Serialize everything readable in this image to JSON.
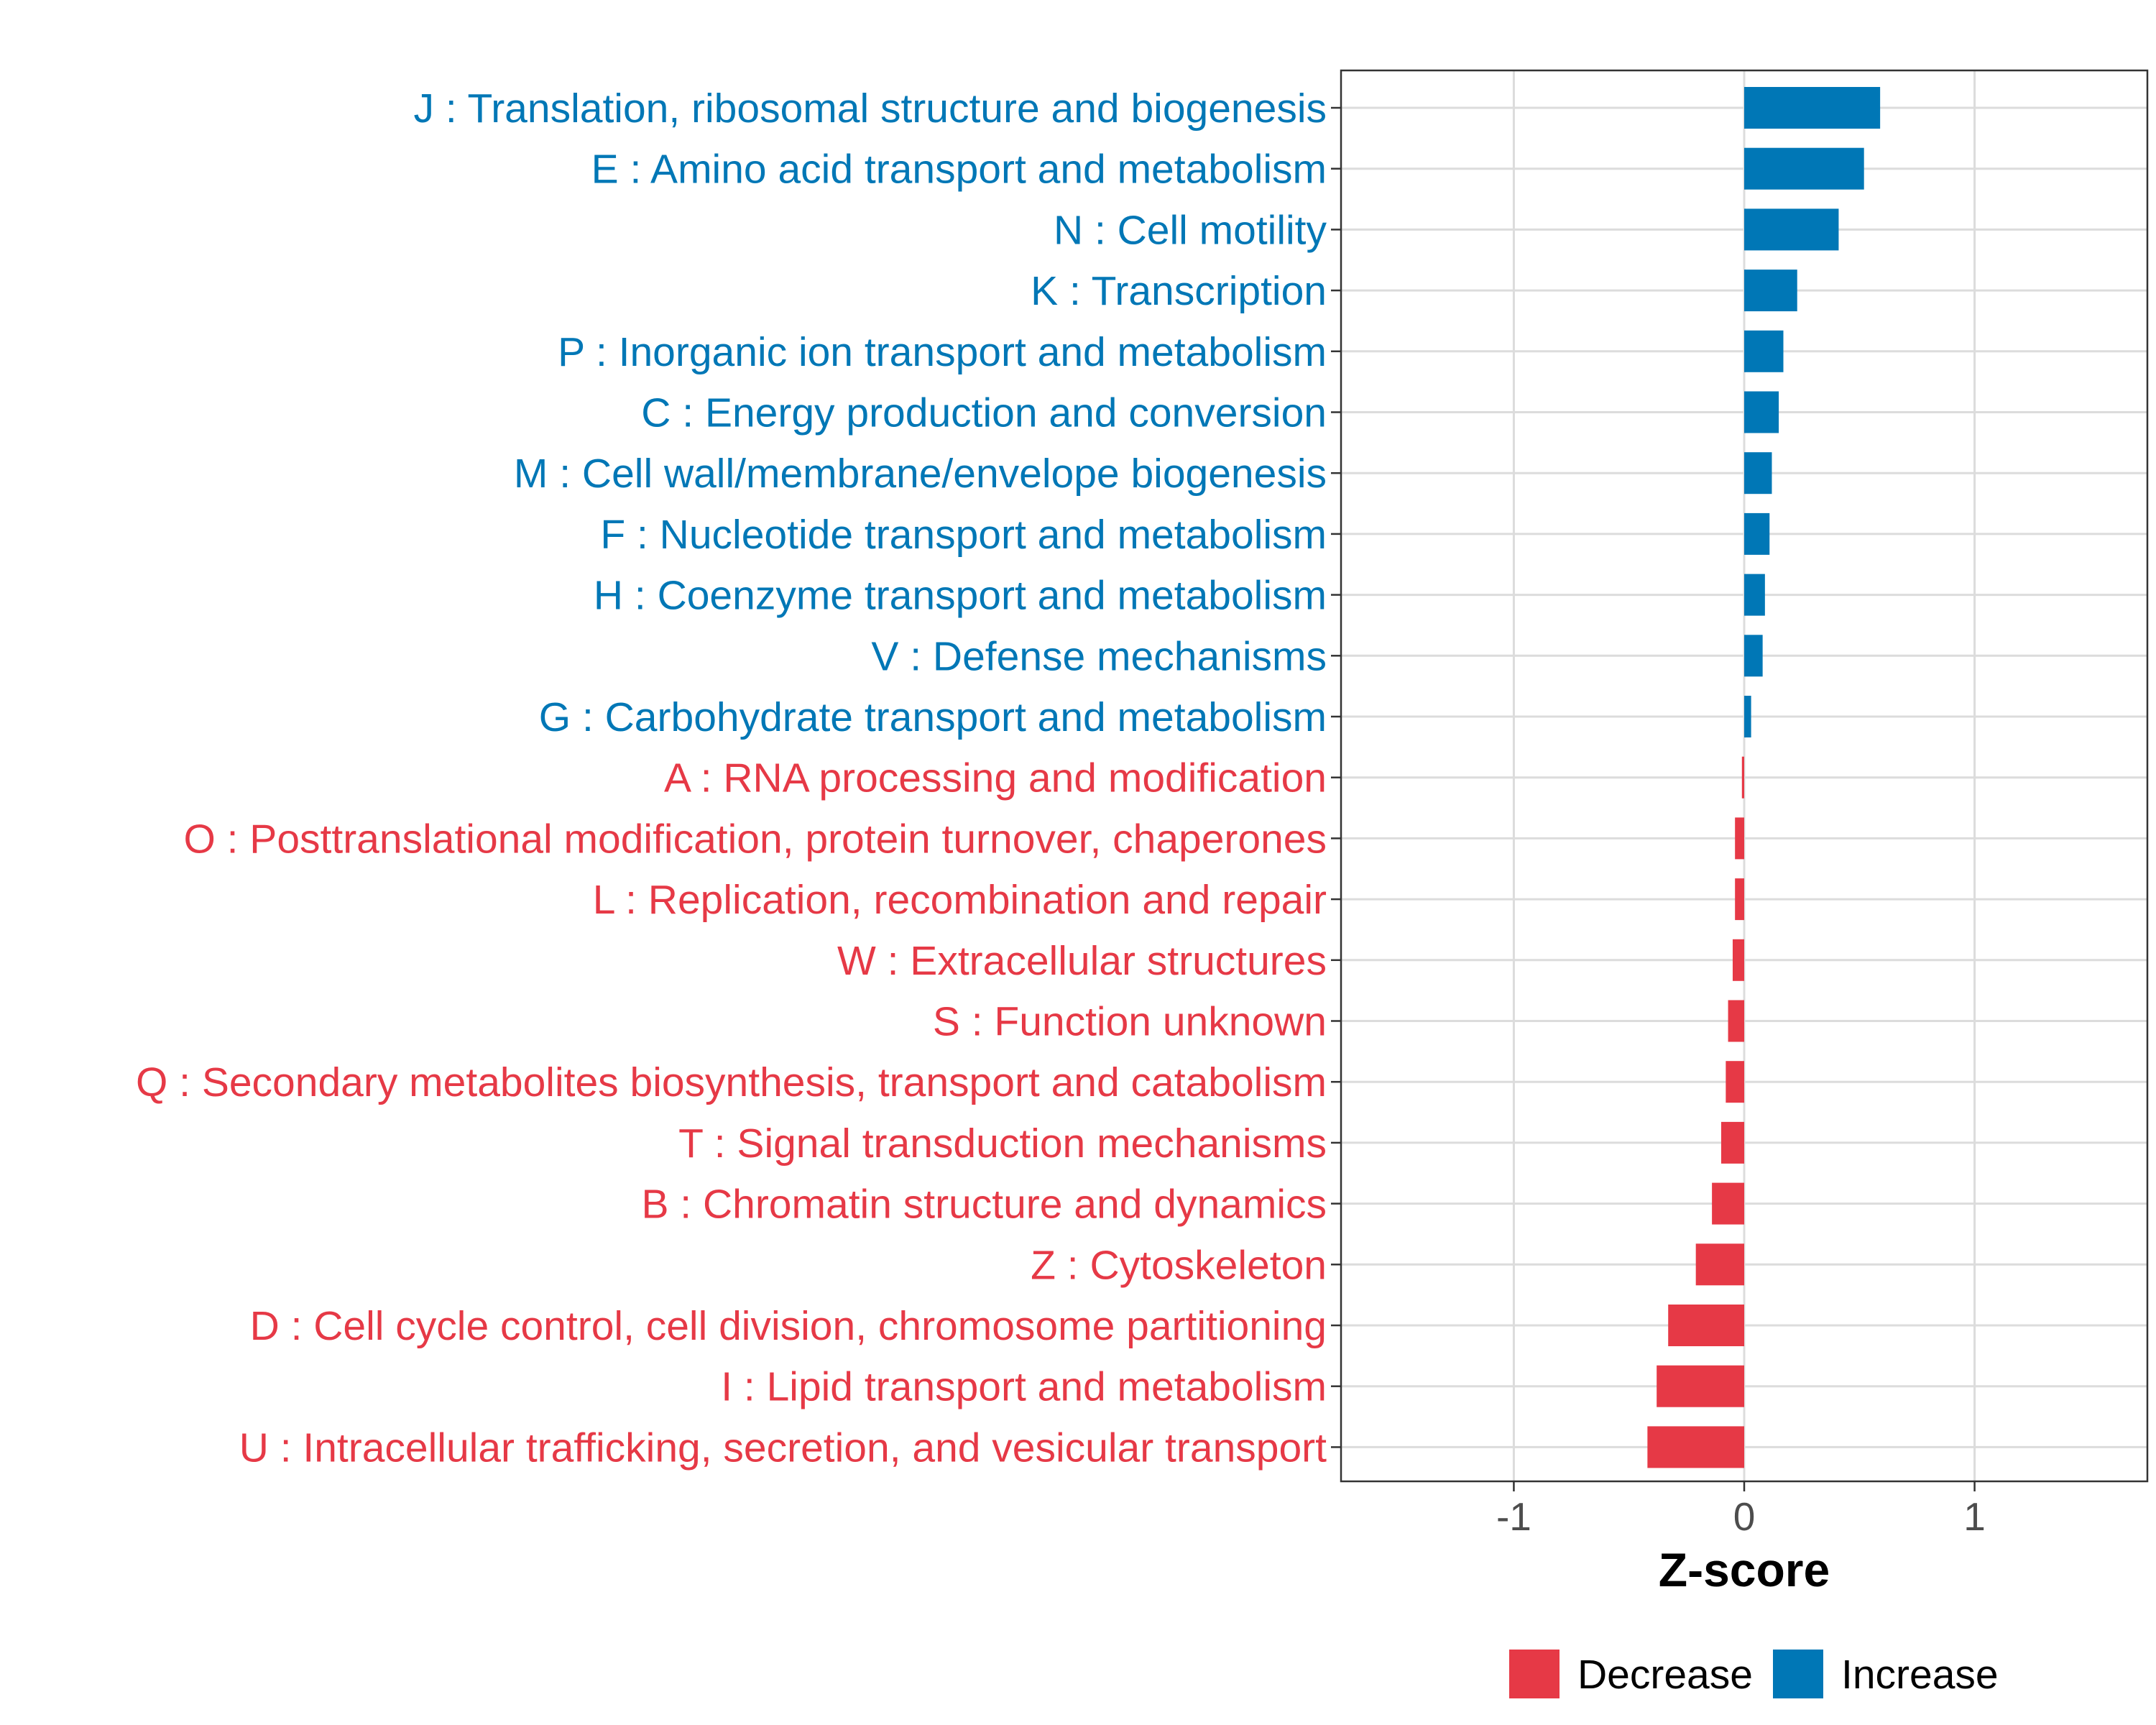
{
  "chart_data": {
    "type": "bar",
    "orientation": "horizontal",
    "xlabel": "Z-score",
    "xlim": [
      -1.75,
      1.75
    ],
    "xticks": [
      -1,
      0,
      1
    ],
    "xtick_labels": [
      "-1",
      "0",
      "1"
    ],
    "grid": true,
    "colors": {
      "Decrease": "#e63946",
      "Increase": "#0077b6"
    },
    "legend": {
      "position": "bottom",
      "entries": [
        {
          "label": "Decrease",
          "color": "#e63946"
        },
        {
          "label": "Increase",
          "color": "#0077b6"
        }
      ]
    },
    "categories": [
      {
        "label": "J : Translation, ribosomal structure and biogenesis",
        "value": 0.59,
        "group": "Increase"
      },
      {
        "label": "E : Amino acid transport and metabolism",
        "value": 0.52,
        "group": "Increase"
      },
      {
        "label": "N : Cell motility",
        "value": 0.41,
        "group": "Increase"
      },
      {
        "label": "K : Transcription",
        "value": 0.23,
        "group": "Increase"
      },
      {
        "label": "P : Inorganic ion transport and metabolism",
        "value": 0.17,
        "group": "Increase"
      },
      {
        "label": "C : Energy production and conversion",
        "value": 0.15,
        "group": "Increase"
      },
      {
        "label": "M : Cell wall/membrane/envelope biogenesis",
        "value": 0.12,
        "group": "Increase"
      },
      {
        "label": "F : Nucleotide transport and metabolism",
        "value": 0.11,
        "group": "Increase"
      },
      {
        "label": "H : Coenzyme transport and metabolism",
        "value": 0.09,
        "group": "Increase"
      },
      {
        "label": "V : Defense mechanisms",
        "value": 0.08,
        "group": "Increase"
      },
      {
        "label": "G : Carbohydrate transport and metabolism",
        "value": 0.03,
        "group": "Increase"
      },
      {
        "label": "A : RNA processing and modification",
        "value": -0.01,
        "group": "Decrease"
      },
      {
        "label": "O : Posttranslational modification, protein turnover, chaperones",
        "value": -0.04,
        "group": "Decrease"
      },
      {
        "label": "L : Replication, recombination and repair",
        "value": -0.04,
        "group": "Decrease"
      },
      {
        "label": "W : Extracellular structures",
        "value": -0.05,
        "group": "Decrease"
      },
      {
        "label": "S : Function unknown",
        "value": -0.07,
        "group": "Decrease"
      },
      {
        "label": "Q : Secondary metabolites biosynthesis, transport and catabolism",
        "value": -0.08,
        "group": "Decrease"
      },
      {
        "label": "T : Signal transduction mechanisms",
        "value": -0.1,
        "group": "Decrease"
      },
      {
        "label": "B : Chromatin structure and dynamics",
        "value": -0.14,
        "group": "Decrease"
      },
      {
        "label": "Z : Cytoskeleton",
        "value": -0.21,
        "group": "Decrease"
      },
      {
        "label": "D : Cell cycle control, cell division, chromosome partitioning",
        "value": -0.33,
        "group": "Decrease"
      },
      {
        "label": "I : Lipid transport and metabolism",
        "value": -0.38,
        "group": "Decrease"
      },
      {
        "label": "U : Intracellular trafficking, secretion, and vesicular transport",
        "value": -0.42,
        "group": "Decrease"
      }
    ]
  }
}
